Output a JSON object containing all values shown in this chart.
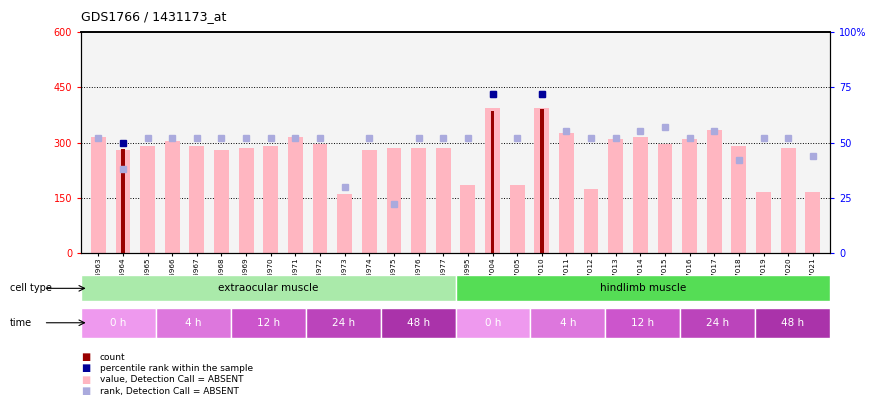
{
  "title": "GDS1766 / 1431173_at",
  "samples": [
    "GSM16963",
    "GSM16964",
    "GSM16965",
    "GSM16966",
    "GSM16967",
    "GSM16968",
    "GSM16969",
    "GSM16970",
    "GSM16971",
    "GSM16972",
    "GSM16973",
    "GSM16974",
    "GSM16975",
    "GSM16976",
    "GSM16977",
    "GSM16995",
    "GSM17004",
    "GSM17005",
    "GSM17010",
    "GSM17011",
    "GSM17012",
    "GSM17013",
    "GSM17014",
    "GSM17015",
    "GSM17016",
    "GSM17017",
    "GSM17018",
    "GSM17019",
    "GSM17020",
    "GSM17021"
  ],
  "value_bars": [
    315,
    280,
    290,
    305,
    290,
    280,
    285,
    290,
    315,
    295,
    160,
    280,
    285,
    285,
    285,
    185,
    395,
    185,
    395,
    325,
    175,
    310,
    315,
    295,
    310,
    335,
    290,
    165,
    285,
    165
  ],
  "rank_bars": [
    52,
    38,
    52,
    52,
    52,
    52,
    52,
    52,
    52,
    52,
    30,
    52,
    22,
    52,
    52,
    52,
    72,
    52,
    72,
    55,
    52,
    52,
    55,
    57,
    52,
    55,
    42,
    52,
    52,
    44
  ],
  "count_bars": [
    0,
    282,
    0,
    0,
    0,
    0,
    0,
    0,
    0,
    0,
    0,
    0,
    0,
    0,
    0,
    0,
    385,
    0,
    390,
    0,
    0,
    0,
    0,
    0,
    0,
    0,
    0,
    0,
    0,
    0
  ],
  "count_rank_bars": [
    0,
    50,
    0,
    0,
    0,
    0,
    0,
    0,
    0,
    0,
    0,
    0,
    0,
    0,
    0,
    0,
    72,
    0,
    72,
    0,
    0,
    0,
    0,
    0,
    0,
    0,
    0,
    0,
    0,
    0
  ],
  "cell_type_groups": [
    {
      "label": "extraocular muscle",
      "start": 0,
      "end": 15,
      "color": "#aaeaaa"
    },
    {
      "label": "hindlimb muscle",
      "start": 15,
      "end": 30,
      "color": "#55dd55"
    }
  ],
  "time_groups": [
    {
      "label": "0 h",
      "start": 0,
      "end": 3,
      "color": "#ee99ee"
    },
    {
      "label": "4 h",
      "start": 3,
      "end": 6,
      "color": "#dd77dd"
    },
    {
      "label": "12 h",
      "start": 6,
      "end": 9,
      "color": "#cc55cc"
    },
    {
      "label": "24 h",
      "start": 9,
      "end": 12,
      "color": "#bb44bb"
    },
    {
      "label": "48 h",
      "start": 12,
      "end": 15,
      "color": "#aa33aa"
    },
    {
      "label": "0 h",
      "start": 15,
      "end": 18,
      "color": "#ee99ee"
    },
    {
      "label": "4 h",
      "start": 18,
      "end": 21,
      "color": "#dd77dd"
    },
    {
      "label": "12 h",
      "start": 21,
      "end": 24,
      "color": "#cc55cc"
    },
    {
      "label": "24 h",
      "start": 24,
      "end": 27,
      "color": "#bb44bb"
    },
    {
      "label": "48 h",
      "start": 27,
      "end": 30,
      "color": "#aa33aa"
    }
  ],
  "ylim_left": [
    0,
    600
  ],
  "ylim_right": [
    0,
    100
  ],
  "yticks_left": [
    0,
    150,
    300,
    450,
    600
  ],
  "yticks_right": [
    0,
    25,
    50,
    75,
    100
  ],
  "ytick_labels_right": [
    "0",
    "25",
    "50",
    "75",
    "100%"
  ],
  "value_color": "#FFB6C1",
  "rank_color": "#aaaadd",
  "count_color": "#990000",
  "count_rank_color": "#000099",
  "legend_items": [
    {
      "label": "count",
      "color": "#990000"
    },
    {
      "label": "percentile rank within the sample",
      "color": "#000099"
    },
    {
      "label": "value, Detection Call = ABSENT",
      "color": "#FFB6C1"
    },
    {
      "label": "rank, Detection Call = ABSENT",
      "color": "#aaaadd"
    }
  ]
}
